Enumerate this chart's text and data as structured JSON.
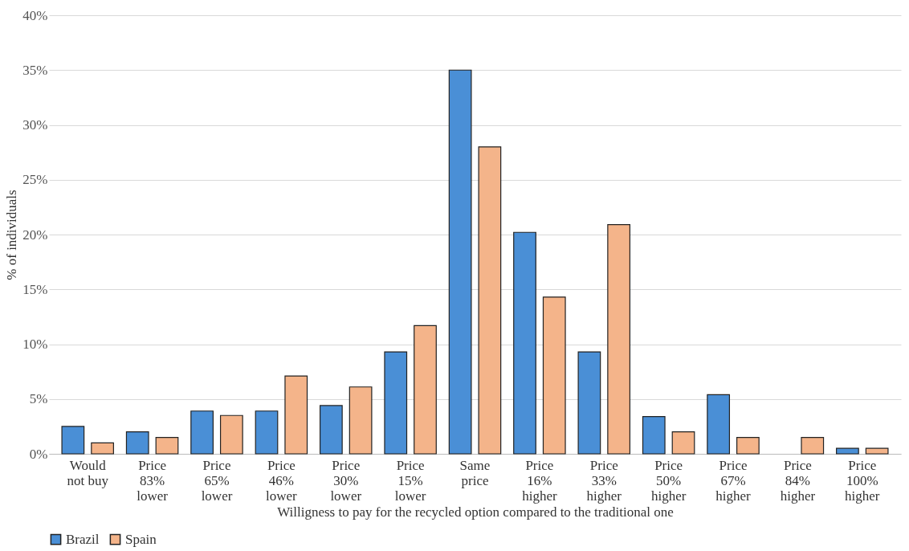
{
  "chart_data": {
    "type": "bar",
    "xlabel": "Willigness to pay for the recycled option compared to the traditional one",
    "ylabel": "% of individuals",
    "categories": [
      "Would\nnot buy",
      "Price\n83%\nlower",
      "Price\n65%\nlower",
      "Price\n46%\nlower",
      "Price\n30%\nlower",
      "Price\n15%\nlower",
      "Same\nprice",
      "Price\n16%\nhigher",
      "Price\n33%\nhigher",
      "Price\n50%\nhigher",
      "Price\n67%\nhigher",
      "Price\n84%\nhigher",
      "Price\n100%\nhigher"
    ],
    "series": [
      {
        "name": "Brazil",
        "color": "#4a8fd6",
        "values": [
          2.5,
          2.0,
          3.9,
          3.9,
          4.4,
          9.3,
          35.0,
          20.2,
          9.3,
          3.4,
          5.4,
          null,
          0.5
        ]
      },
      {
        "name": "Spain",
        "color": "#f4b48a",
        "values": [
          1.0,
          1.5,
          3.5,
          7.1,
          6.1,
          11.7,
          28.0,
          14.3,
          20.9,
          2.0,
          1.5,
          1.5,
          0.5
        ]
      }
    ],
    "ylim": [
      0,
      40
    ],
    "yticks": [
      {
        "value": 0,
        "label": "0%"
      },
      {
        "value": 5,
        "label": "5%"
      },
      {
        "value": 10,
        "label": "10%"
      },
      {
        "value": 15,
        "label": "15%"
      },
      {
        "value": 20,
        "label": "20%"
      },
      {
        "value": 25,
        "label": "25%"
      },
      {
        "value": 30,
        "label": "30%"
      },
      {
        "value": 35,
        "label": "35%"
      },
      {
        "value": 40,
        "label": "40%"
      }
    ],
    "grid": "y",
    "legend": "bottom"
  }
}
